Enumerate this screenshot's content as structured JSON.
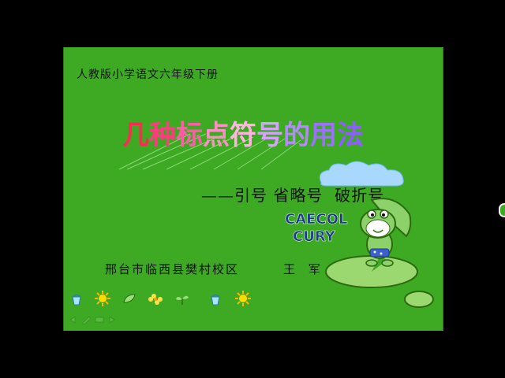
{
  "slide": {
    "top_subtitle": "人教版小学语文六年级下册",
    "title_chars": [
      "几",
      "种",
      "标",
      "点",
      "符",
      "号",
      "的",
      "用",
      "法"
    ],
    "subtitle_line": "——引号 省略号  破折号",
    "author_school": "邢台市临西县樊村校区",
    "author_name": "王 军",
    "brand_line1": "CAECOL",
    "brand_line2": "CURY"
  },
  "colors": {
    "background": "#3eaa24",
    "title_gradient": [
      "#ff2a52",
      "#ff5ca8",
      "#d7a2ff",
      "#8e5cff"
    ]
  },
  "icons": [
    "bucket-icon",
    "sun-icon",
    "leaf-icon",
    "flower-icon",
    "sprout-icon",
    "bucket-icon",
    "sun-icon",
    "frog-mascot",
    "cloud-icon",
    "lily-pad-icon"
  ]
}
